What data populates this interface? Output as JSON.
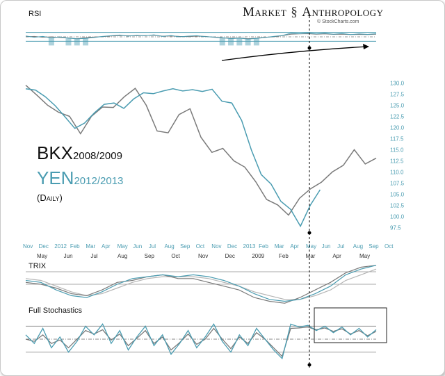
{
  "header": {
    "brand_left": "Market",
    "brand_right": "Anthropology",
    "brand_glyph": "helix-icon",
    "credit": "© StockCharts.com"
  },
  "titles": {
    "bkx": "BKX",
    "bkx_years": "2008/2009",
    "yen": "YEN",
    "yen_years": "2012/2013",
    "subtitle": "(Daily)"
  },
  "colors": {
    "yen": "#4a9cb1",
    "bkx": "#7a7a7a",
    "signal": "#b5b5b5",
    "rsi_fill": "#4a9cb1",
    "band": "#4a9cb1"
  },
  "chart_data": [
    {
      "type": "line",
      "panel": "RSI",
      "title": "RSI",
      "ylim": [
        0,
        100
      ],
      "bands": [
        30,
        50,
        70
      ],
      "series": [
        {
          "values": [
            54,
            48,
            52,
            45,
            50,
            44,
            41,
            43,
            47,
            52,
            55,
            58,
            53,
            57,
            55,
            59,
            52,
            56,
            50,
            53,
            55,
            51,
            49,
            46,
            42,
            44,
            40,
            43,
            47,
            52,
            56,
            66,
            64,
            67,
            63,
            66,
            62,
            65,
            60,
            63,
            61,
            64
          ]
        },
        {
          "values": [
            50,
            52,
            48,
            50,
            47,
            45,
            42,
            46,
            49,
            51,
            54,
            56,
            55,
            55,
            56,
            57,
            53,
            54,
            52,
            51,
            53,
            52,
            48,
            45,
            44,
            45,
            42,
            44,
            48,
            50,
            55,
            62,
            63,
            64,
            62,
            63,
            61,
            62,
            60,
            61,
            60,
            62
          ]
        }
      ]
    },
    {
      "type": "line",
      "panel": "price",
      "x_top": [
        "Nov",
        "Dec",
        "2012",
        "Feb",
        "Mar",
        "Apr",
        "May",
        "Jun",
        "Jul",
        "Aug",
        "Sep",
        "Oct",
        "Nov",
        "Dec",
        "2013",
        "Feb",
        "Mar",
        "Apr",
        "May",
        "Jun",
        "Jul",
        "Aug",
        "Sep",
        "Oct"
      ],
      "x_bottom": [
        "May",
        "Jun",
        "Jul",
        "Aug",
        "Sep",
        "Oct",
        "Nov",
        "Dec",
        "2009",
        "Feb",
        "Mar",
        "Apr",
        "May"
      ],
      "y_ticks": [
        "130.0",
        "127.5",
        "125.0",
        "122.5",
        "120.0",
        "117.5",
        "115.0",
        "112.5",
        "110.0",
        "107.5",
        "105.0",
        "102.5",
        "100.0",
        "97.5"
      ],
      "ylim": [
        96,
        131
      ],
      "series": [
        {
          "name": "YEN 2012/2013",
          "values": [
            128.7,
            128.4,
            126.9,
            124.9,
            122.4,
            119.8,
            121.0,
            123.3,
            125.2,
            125.5,
            124.3,
            126.4,
            127.8,
            127.6,
            128.2,
            128.7,
            128.2,
            128.5,
            128.1,
            128.6,
            125.9,
            125.5,
            121.6,
            114.9,
            109.4,
            107.3,
            103.4,
            101.6,
            97.8,
            102.5,
            106.0
          ]
        },
        {
          "name": "BKX 2008/2009",
          "values": [
            129.5,
            127.3,
            125.0,
            123.4,
            122.5,
            118.6,
            122.5,
            124.6,
            124.5,
            126.9,
            128.8,
            125.0,
            119.2,
            118.8,
            122.9,
            124.2,
            117.8,
            114.4,
            115.3,
            112.5,
            111.1,
            107.8,
            103.8,
            102.6,
            100.3,
            104.1,
            106.2,
            107.7,
            110.0,
            111.5,
            115.0,
            111.8,
            113.1
          ]
        }
      ]
    },
    {
      "type": "line",
      "panel": "TRIX",
      "title": "TRIX",
      "series": [
        {
          "values": [
            0.2,
            0.1,
            -0.3,
            -0.6,
            -0.7,
            -0.4,
            0.0,
            0.3,
            0.4,
            0.5,
            0.4,
            0.5,
            0.4,
            0.2,
            -0.1,
            -0.5,
            -0.8,
            -0.9,
            -0.8,
            -0.5,
            -0.1,
            0.5,
            0.8,
            1.0
          ]
        },
        {
          "values": [
            0.3,
            0.2,
            -0.1,
            -0.4,
            -0.6,
            -0.5,
            -0.2,
            0.1,
            0.3,
            0.4,
            0.4,
            0.4,
            0.3,
            0.1,
            -0.1,
            -0.4,
            -0.6,
            -0.8,
            -0.8,
            -0.6,
            -0.3,
            0.2,
            0.5,
            0.8
          ]
        },
        {
          "values": [
            0.1,
            0.0,
            -0.2,
            -0.5,
            -0.6,
            -0.3,
            0.1,
            0.2,
            0.4,
            0.5,
            0.3,
            0.3,
            0.1,
            -0.1,
            -0.3,
            -0.7,
            -0.9,
            -1.0,
            -0.7,
            -0.3,
            0.1,
            0.6,
            0.9,
            1.0
          ]
        }
      ]
    },
    {
      "type": "line",
      "panel": "Full Stochastics",
      "title": "Full Stochastics",
      "ylim": [
        0,
        100
      ],
      "bands": [
        20,
        50,
        80
      ],
      "series": [
        {
          "values": [
            60,
            40,
            75,
            30,
            55,
            20,
            45,
            80,
            60,
            85,
            40,
            70,
            25,
            55,
            80,
            35,
            60,
            15,
            40,
            70,
            30,
            55,
            85,
            45,
            20,
            60,
            35,
            75,
            50,
            25,
            5,
            85,
            78,
            82,
            70,
            80,
            65,
            78,
            60,
            75,
            55,
            72
          ]
        },
        {
          "values": [
            50,
            45,
            60,
            40,
            48,
            30,
            50,
            70,
            62,
            72,
            48,
            62,
            35,
            52,
            70,
            40,
            55,
            25,
            42,
            62,
            38,
            50,
            75,
            50,
            28,
            55,
            40,
            65,
            50,
            30,
            10,
            75,
            76,
            78,
            72,
            76,
            68,
            74,
            62,
            70,
            58,
            68
          ]
        }
      ]
    }
  ]
}
